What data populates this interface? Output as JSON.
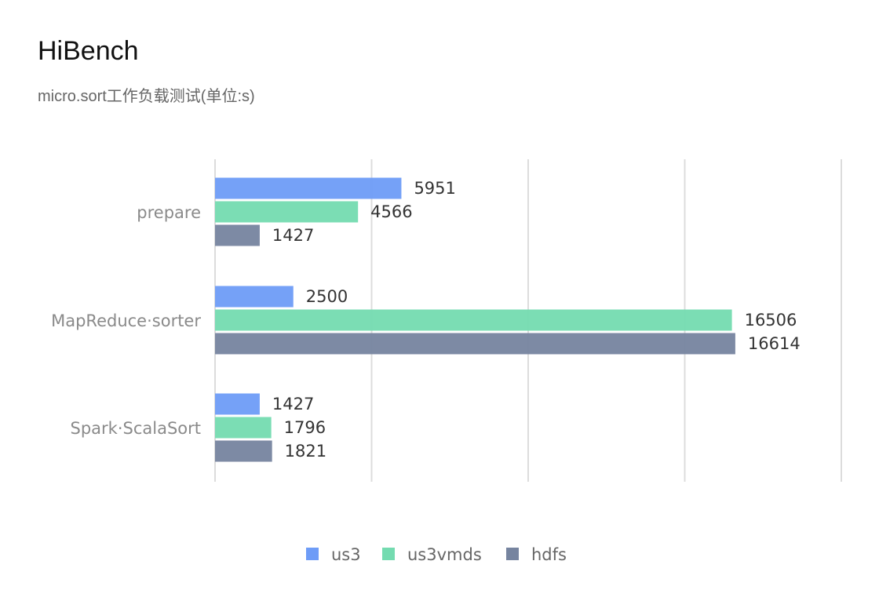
{
  "title": "HiBench",
  "subtitle": "micro.sort工作负载测试(单位:s)",
  "chart_data": {
    "type": "bar",
    "orientation": "horizontal",
    "title": "HiBench",
    "subtitle": "micro.sort工作负载测试(单位:s)",
    "categories": [
      "prepare",
      "MapReduce·sorter",
      "Spark·ScalaSort"
    ],
    "series": [
      {
        "name": "us3",
        "color": "#6e9cf7",
        "values": [
          5951,
          2500,
          1427
        ]
      },
      {
        "name": "us3vmds",
        "color": "#74dbb0",
        "values": [
          4566,
          16506,
          1796
        ]
      },
      {
        "name": "hdfs",
        "color": "#76849f",
        "values": [
          1427,
          16614,
          1821
        ]
      }
    ],
    "xlim": [
      0,
      20000
    ],
    "grid": true,
    "legend": "bottom-center"
  }
}
